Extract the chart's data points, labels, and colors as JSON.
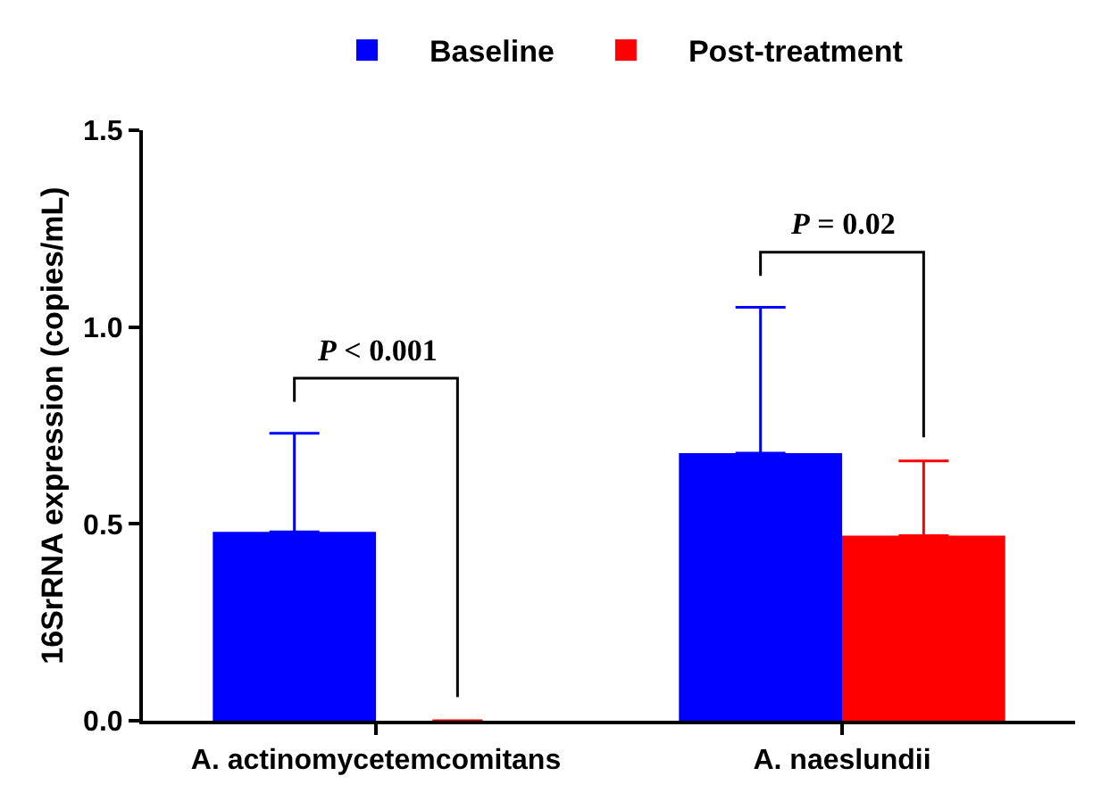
{
  "chart_data": {
    "type": "bar",
    "ylabel": "16SrRNA expression (copies/mL)",
    "categories": [
      "A. actinomycetemcomitans",
      "A. naeslundii"
    ],
    "series": [
      {
        "name": "Baseline",
        "color": "#0000ff",
        "values": [
          0.48,
          0.68
        ],
        "errors": [
          [
            0.48,
            0.73
          ],
          [
            0.68,
            1.05
          ]
        ]
      },
      {
        "name": "Post-treatment",
        "color": "#ff0000",
        "values": [
          0,
          0.47
        ],
        "errors": [
          null,
          [
            0.47,
            0.66
          ]
        ]
      }
    ],
    "ylim": [
      0,
      1.5
    ],
    "yticks": [
      {
        "value": 0,
        "label": "0.0"
      },
      {
        "value": 0.5,
        "label": "0.5"
      },
      {
        "value": 1,
        "label": "1.0"
      },
      {
        "value": 1.5,
        "label": "1.5"
      }
    ],
    "grid": false,
    "legend": "top",
    "annotations": [
      "P < 0.001",
      "P = 0.02"
    ]
  }
}
